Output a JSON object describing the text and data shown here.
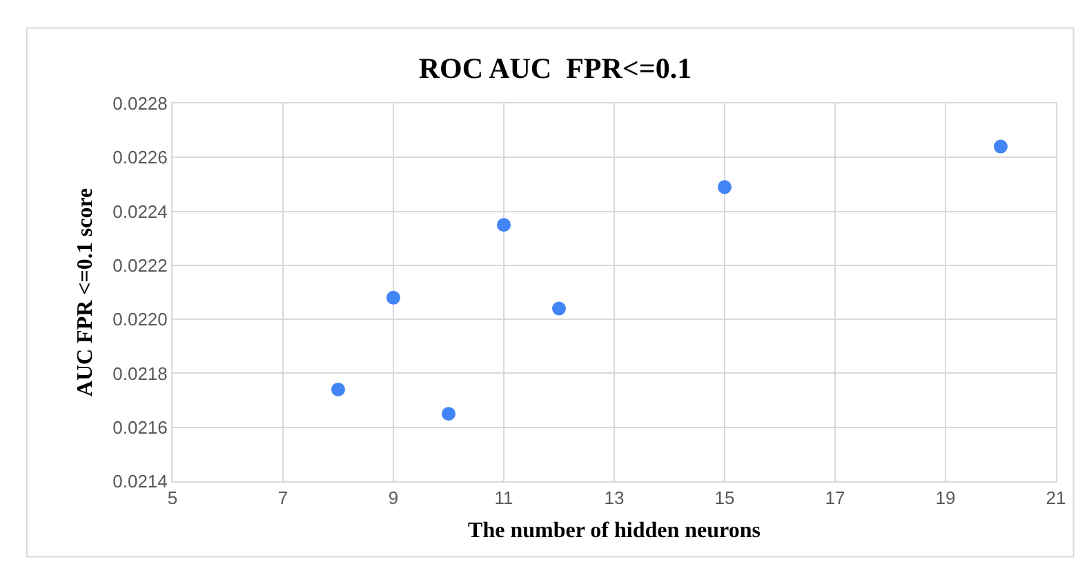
{
  "chart_data": {
    "type": "scatter",
    "title": "ROC AUC  FPR<=0.1",
    "xlabel": "The number of hidden neurons",
    "ylabel": "AUC FPR <=0.1 score",
    "x": [
      8,
      9,
      10,
      11,
      12,
      15,
      20
    ],
    "series": [
      {
        "color": "#4285f4",
        "values": [
          0.02174,
          0.02208,
          0.02165,
          0.02235,
          0.02204,
          0.02249,
          0.02264
        ]
      }
    ],
    "xlim": [
      5,
      21
    ],
    "xticks": [
      5,
      7,
      9,
      11,
      13,
      15,
      17,
      19,
      21
    ],
    "ylim": [
      0.0214,
      0.0228
    ],
    "yticks": [
      0.0214,
      0.0216,
      0.0218,
      {
        "value": 0.022,
        "label": "0.0220"
      },
      0.0222,
      0.0224,
      0.0226,
      0.0228
    ],
    "grid": true,
    "marker": "circle"
  }
}
